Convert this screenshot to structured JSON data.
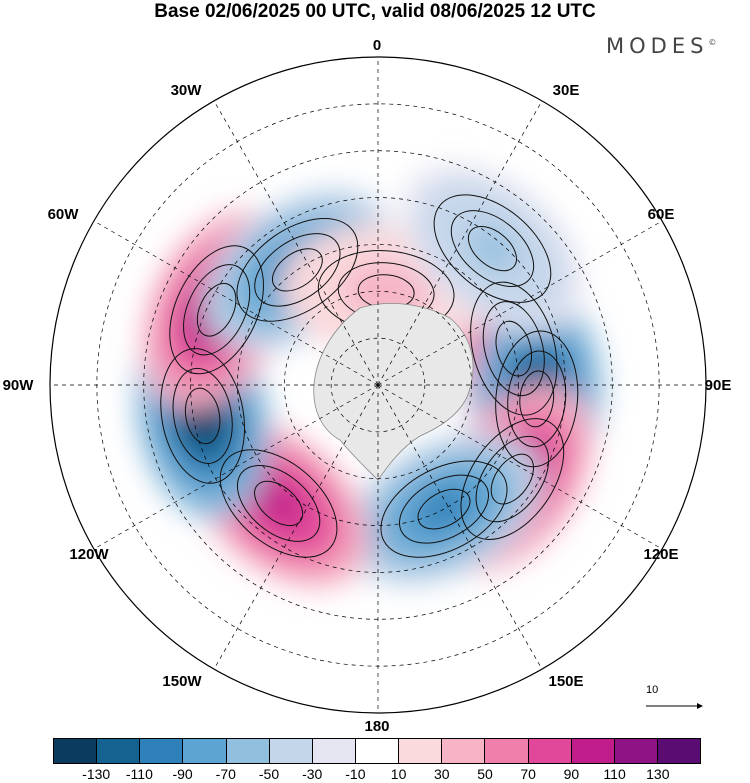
{
  "title": "Base 02/06/2025 00 UTC, valid 08/06/2025 12 UTC",
  "brand": "MODES",
  "brand_mark": "©",
  "longitude_labels": [
    "0",
    "30E",
    "60E",
    "90E",
    "120E",
    "150E",
    "180",
    "150W",
    "120W",
    "90W",
    "60W",
    "30W"
  ],
  "vector_scale_label": "10",
  "colorbar": {
    "colors": [
      "#0b3b5e",
      "#14628f",
      "#2f80b9",
      "#5ea4d2",
      "#93bfdf",
      "#c4d6ea",
      "#e6e6f2",
      "#ffffff",
      "#fadadd",
      "#f6b4c6",
      "#ef7fab",
      "#e1489a",
      "#c01d8a",
      "#8e1485",
      "#5a0c73"
    ],
    "tick_labels": [
      "-130",
      "-110",
      "-90",
      "-70",
      "-50",
      "-30",
      "-10",
      "10",
      "30",
      "50",
      "70",
      "90",
      "110",
      "130"
    ]
  },
  "anomalies": [
    {
      "center_lon": 75,
      "center_lat": -60,
      "value": 105
    },
    {
      "center_lon": 95,
      "center_lat": -56,
      "value": -125
    },
    {
      "center_lon": 125,
      "center_lat": -55,
      "value": 110
    },
    {
      "center_lon": 152,
      "center_lat": -60,
      "value": -100
    },
    {
      "center_lon": -140,
      "center_lat": -57,
      "value": 95
    },
    {
      "center_lon": -100,
      "center_lat": -52,
      "value": -130
    },
    {
      "center_lon": -65,
      "center_lat": -52,
      "value": 115
    },
    {
      "center_lon": -35,
      "center_lat": -60,
      "value": -100
    },
    {
      "center_lon": 5,
      "center_lat": -70,
      "value": 40
    },
    {
      "center_lon": 40,
      "center_lat": -52,
      "value": -55
    }
  ]
}
